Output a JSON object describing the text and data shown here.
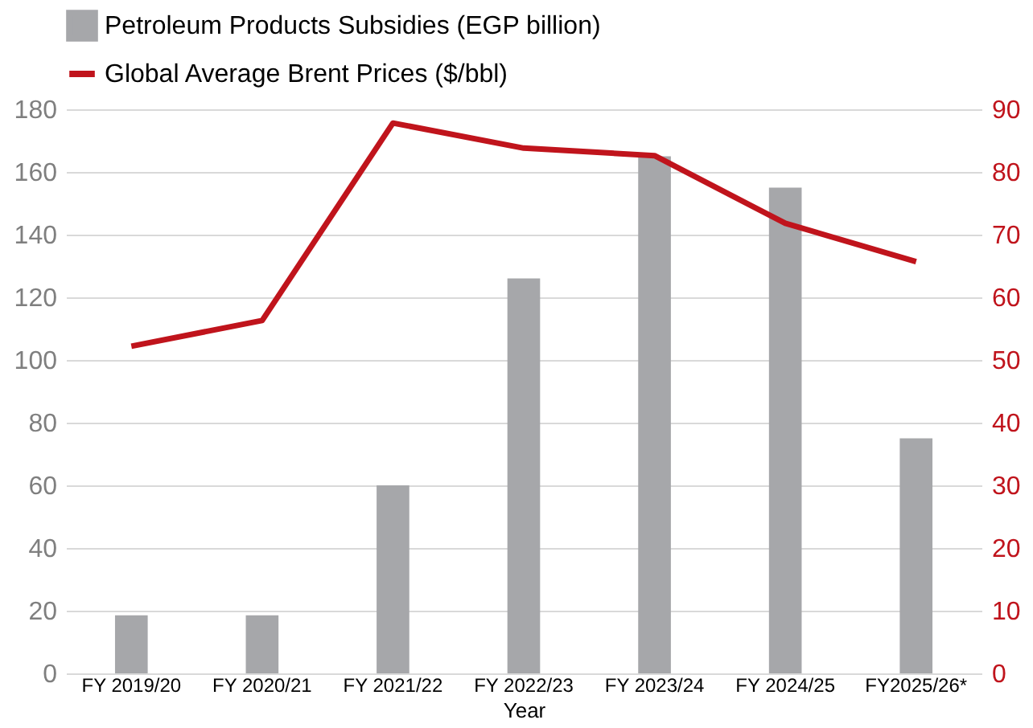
{
  "chart_data": {
    "type": "bar",
    "xlabel": "Year",
    "categories": [
      "FY 2019/20",
      "FY 2020/21",
      "FY 2021/22",
      "FY 2022/23",
      "FY 2023/24",
      "FY 2024/25",
      "FY2025/26*"
    ],
    "series": [
      {
        "name": "Petroleum Products Subsidies (EGP billion)",
        "color": "#a6a7aa",
        "values": [
          18.5,
          18.5,
          60,
          126,
          165,
          155,
          75
        ]
      },
      {
        "name": "Global Average Brent Prices ($/bbl)",
        "type": "line",
        "axis": "y2",
        "color": "#c0141c",
        "values": [
          52.2,
          56.3,
          87.8,
          83.8,
          82.6,
          71.8,
          65.7
        ]
      }
    ],
    "ylim": [
      0,
      180
    ],
    "yticks": [
      0,
      20,
      40,
      60,
      80,
      100,
      120,
      140,
      160,
      180
    ],
    "y2lim": [
      0,
      90
    ],
    "y2ticks": [
      0,
      10,
      20,
      30,
      40,
      50,
      60,
      70,
      80,
      90
    ],
    "grid": "y",
    "legend": "top left"
  }
}
